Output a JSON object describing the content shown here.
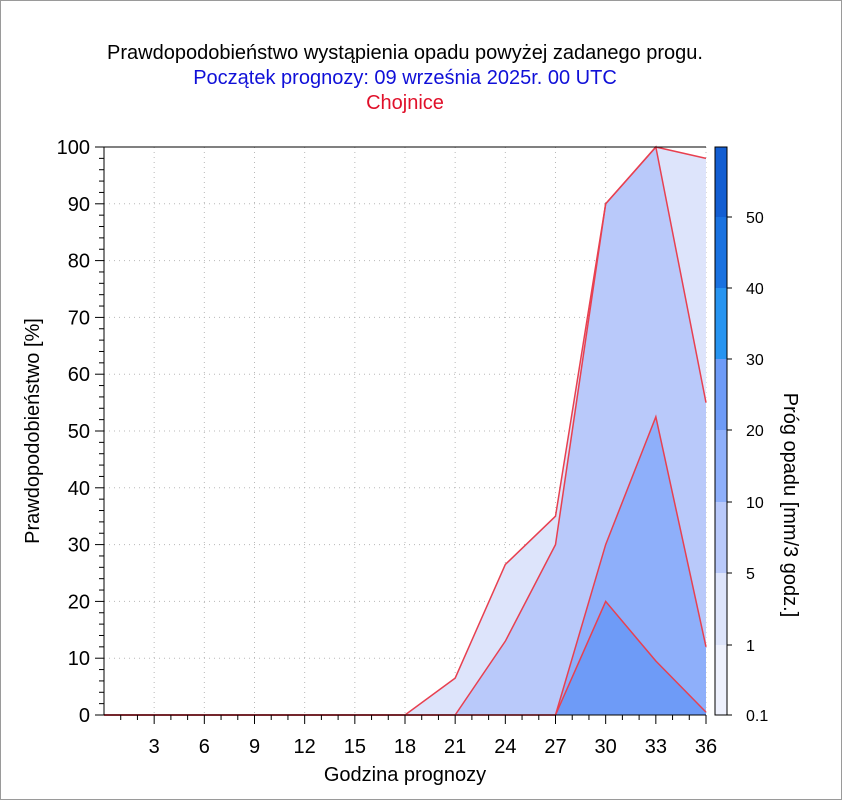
{
  "chart_data": {
    "type": "area",
    "title": "Prawdopodobieństwo wystąpienia opadu powyżej zadanego progu.",
    "subtitle": "Początek prognozy: 09 września 2025r. 00 UTC",
    "location": "Chojnice",
    "xlabel": "Godzina prognozy",
    "ylabel": "Prawdopodobieństwo [%]",
    "colorbar_label": "Próg opadu [mm/3 godz.]",
    "xlim": [
      0,
      36
    ],
    "ylim": [
      0,
      100
    ],
    "x_ticks": [
      "3",
      "6",
      "9",
      "12",
      "15",
      "18",
      "21",
      "24",
      "27",
      "30",
      "33",
      "36"
    ],
    "y_ticks": [
      "0",
      "10",
      "20",
      "30",
      "40",
      "50",
      "60",
      "70",
      "80",
      "90",
      "100"
    ],
    "x": [
      0,
      3,
      6,
      9,
      12,
      15,
      18,
      21,
      24,
      27,
      30,
      33,
      36
    ],
    "series": [
      {
        "name": "0.1",
        "color": "#dde4fb",
        "values": [
          0,
          0,
          0,
          0,
          0,
          0,
          0,
          6.5,
          26.5,
          35,
          90,
          100,
          98
        ]
      },
      {
        "name": "1",
        "color": "#b9c9fa",
        "values": [
          0,
          0,
          0,
          0,
          0,
          0,
          0,
          0,
          13,
          30,
          90,
          100,
          55
        ]
      },
      {
        "name": "5",
        "color": "#8eaffa",
        "values": [
          0,
          0,
          0,
          0,
          0,
          0,
          0,
          0,
          0,
          0,
          30,
          52.5,
          12
        ]
      },
      {
        "name": "10",
        "color": "#6e9bf7",
        "values": [
          0,
          0,
          0,
          0,
          0,
          0,
          0,
          0,
          0,
          0,
          20,
          9.5,
          0.5
        ]
      }
    ],
    "colorbar": {
      "labels": [
        "0.1",
        "1",
        "5",
        "10",
        "20",
        "30",
        "40",
        "50"
      ],
      "colors": [
        "#eef1fd",
        "#dde4fb",
        "#b9c9fa",
        "#8eaffa",
        "#6e9bf7",
        "#2794f0",
        "#1a72e0",
        "#135ed2",
        "#0c48be"
      ]
    },
    "line_color": "#e84050",
    "grid": true
  }
}
